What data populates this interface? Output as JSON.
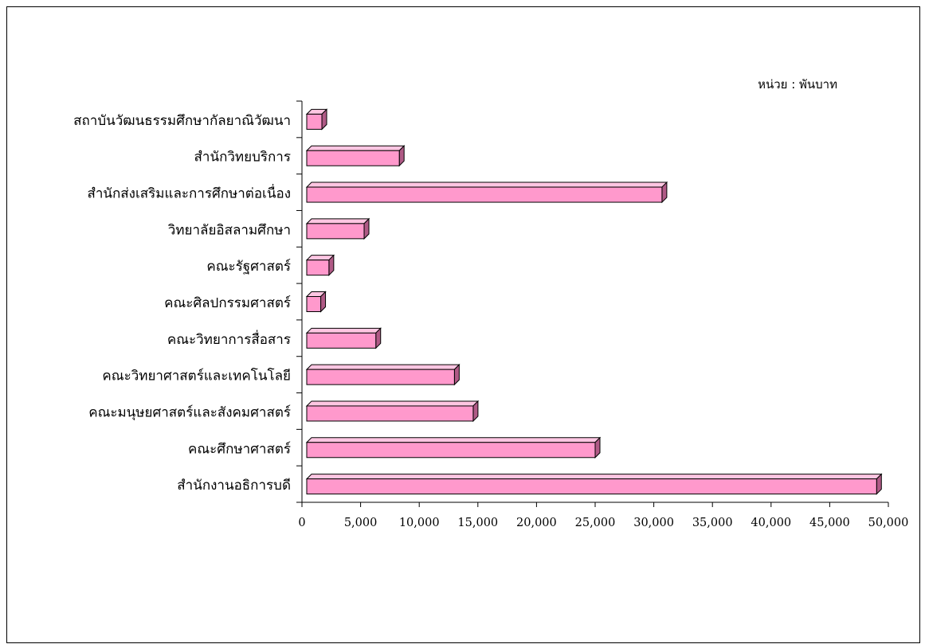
{
  "chart_data": {
    "type": "bar",
    "orientation": "horizontal",
    "style": "3d",
    "unit_label": "หน่วย : พันบาท",
    "categories": [
      "สำนักงานอธิการบดี",
      "คณะศึกษาศาสตร์",
      "คณะมนุษยศาสตร์และสังคมศาสตร์",
      "คณะวิทยาศาสตร์และเทคโนโลยี",
      "คณะวิทยาการสื่อสาร",
      "คณะศิลปกรรมศาสตร์",
      "คณะรัฐศาสตร์",
      "วิทยาลัยอิสลามศึกษา",
      "สำนักส่งเสริมและการศึกษาต่อเนื่อง",
      "สำนักวิทยบริการ",
      "สถาบันวัฒนธรรมศึกษากัลยาณิวัฒนา"
    ],
    "values": [
      49000,
      25000,
      14600,
      13000,
      6300,
      1600,
      2300,
      5300,
      30700,
      8300,
      1700
    ],
    "xlim": [
      0,
      50000
    ],
    "xticks": [
      "0",
      "5,000",
      "10,000",
      "15,000",
      "20,000",
      "25,000",
      "30,000",
      "35,000",
      "40,000",
      "45,000",
      "50,000"
    ],
    "grid": false,
    "bar_color": "#ff99cc",
    "bar_top_color": "#ffc6e2",
    "bar_side_color": "#b05a86"
  }
}
